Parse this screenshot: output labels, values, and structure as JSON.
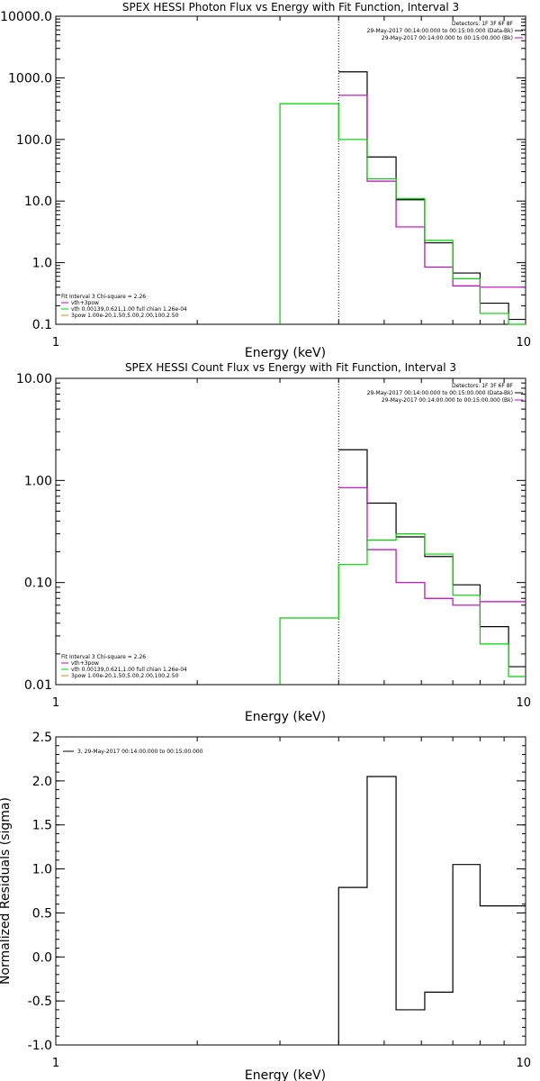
{
  "chart_data": [
    {
      "type": "line",
      "title": "SPEX HESSI Photon Flux vs Energy with Fit Function, Interval 3",
      "xlabel": "Energy (keV)",
      "ylabel": "",
      "x_scale": "log",
      "y_scale": "log",
      "xlim": [
        1,
        10
      ],
      "ylim": [
        0.1,
        10000
      ],
      "x_ticks": [
        1,
        10
      ],
      "x_tick_labels": [
        "1",
        "10"
      ],
      "y_ticks": [
        0.1,
        1,
        10,
        100,
        1000,
        10000
      ],
      "y_tick_labels": [
        "0.1",
        "1.0",
        "10.0",
        "100.0",
        "1000.0",
        "10000.0"
      ],
      "vline_x": 4.0,
      "legend_top_right": [
        {
          "text": "Detectors: 1F 3F 6F 8F",
          "color": ""
        },
        {
          "text": "29-May-2017 00:14:00.000 to 00:15:00.000 (Data-Bk)",
          "color": "#000000"
        },
        {
          "text": "29-May-2017 00:14:00.000 to 00:15:00.000 (Bk)",
          "color": "#c000c0"
        }
      ],
      "legend_bottom_left": [
        {
          "text": "Fit Interval 3   Chi-square = 2.26",
          "color": ""
        },
        {
          "text": "vth+3pow",
          "color": "#c000c0"
        },
        {
          "text": "vth 0.00139,0.621,1.00  full chian 1.26e-04",
          "color": "#00d000"
        },
        {
          "text": "3pow 1.00e-20,1.50,5.00,2.00,100,2.50",
          "color": "#d09000"
        }
      ],
      "series": [
        {
          "color": "#000000",
          "edges": [
            4.0,
            4.6,
            5.3,
            6.1,
            7.0,
            8.0,
            9.2,
            10.0
          ],
          "values": [
            1250,
            52,
            10.5,
            2.1,
            0.68,
            0.22,
            0.12
          ]
        },
        {
          "color": "#c000c0",
          "edges": [
            4.0,
            4.6,
            5.3,
            6.1,
            7.0,
            8.0,
            9.2,
            10.0
          ],
          "values": [
            520,
            21,
            3.8,
            0.85,
            0.42,
            0.4,
            0.4
          ]
        },
        {
          "color": "#00d000",
          "edges": [
            3.0,
            4.0,
            4.6,
            5.3,
            6.1,
            7.0,
            8.0,
            9.2,
            10.0
          ],
          "values": [
            380,
            100,
            23,
            11,
            2.3,
            0.55,
            0.15,
            0.1
          ],
          "drop_to_floor": [
            true,
            false,
            false,
            false,
            false,
            false,
            false,
            false
          ]
        }
      ]
    },
    {
      "type": "line",
      "title": "SPEX HESSI Count Flux vs Energy with Fit Function, Interval 3",
      "xlabel": "Energy (keV)",
      "ylabel": "",
      "x_scale": "log",
      "y_scale": "log",
      "xlim": [
        1,
        10
      ],
      "ylim": [
        0.01,
        10
      ],
      "x_ticks": [
        1,
        10
      ],
      "x_tick_labels": [
        "1",
        "10"
      ],
      "y_ticks": [
        0.01,
        0.1,
        1,
        10
      ],
      "y_tick_labels": [
        "0.01",
        "0.10",
        "1.00",
        "10.00"
      ],
      "vline_x": 4.0,
      "legend_top_right": [
        {
          "text": "Detectors: 1F 3F 6F 8F",
          "color": ""
        },
        {
          "text": "29-May-2017 00:14:00.000 to 00:15:00.000 (Data-Bk)",
          "color": "#000000"
        },
        {
          "text": "29-May-2017 00:14:00.000 to 00:15:00.000 (Bk)",
          "color": "#c000c0"
        }
      ],
      "legend_bottom_left": [
        {
          "text": "Fit Interval 3   Chi-square = 2.26",
          "color": ""
        },
        {
          "text": "vth+3pow",
          "color": "#c000c0"
        },
        {
          "text": "vth 0.00139,0.621,1.00  full chian 1.26e-04",
          "color": "#00d000"
        },
        {
          "text": "3pow 1.00e-20,1.50,5.00,2.00,100,2.50",
          "color": "#d09000"
        }
      ],
      "series": [
        {
          "color": "#000000",
          "edges": [
            4.0,
            4.6,
            5.3,
            6.1,
            7.0,
            8.0,
            9.2,
            10.0
          ],
          "values": [
            2.0,
            0.6,
            0.28,
            0.18,
            0.095,
            0.037,
            0.015
          ]
        },
        {
          "color": "#c000c0",
          "edges": [
            4.0,
            4.6,
            5.3,
            6.1,
            7.0,
            8.0,
            9.2,
            10.0
          ],
          "values": [
            0.85,
            0.21,
            0.1,
            0.07,
            0.06,
            0.065,
            0.065
          ]
        },
        {
          "color": "#00d000",
          "edges": [
            3.0,
            4.0,
            4.6,
            5.3,
            6.1,
            7.0,
            8.0,
            9.2,
            10.0
          ],
          "values": [
            0.045,
            0.15,
            0.26,
            0.3,
            0.19,
            0.075,
            0.025,
            0.012
          ],
          "drop_to_floor": [
            true,
            false,
            false,
            false,
            false,
            false,
            false,
            false
          ]
        }
      ]
    },
    {
      "type": "line",
      "title": "",
      "xlabel": "Energy (keV)",
      "ylabel": "Normalized Residuals (sigma)",
      "x_scale": "log",
      "y_scale": "linear",
      "xlim": [
        1,
        10
      ],
      "ylim": [
        -1.0,
        2.5
      ],
      "x_ticks": [
        1,
        10
      ],
      "x_tick_labels": [
        "1",
        "10"
      ],
      "y_ticks": [
        -1.0,
        -0.5,
        0.0,
        0.5,
        1.0,
        1.5,
        2.0,
        2.5
      ],
      "y_tick_labels": [
        "-1.0",
        "-0.5",
        "0.0",
        "0.5",
        "1.0",
        "1.5",
        "2.0",
        "2.5"
      ],
      "legend_top_left": [
        {
          "text": "3, 29-May-2017 00:14:00.000 to 00:15:00.000",
          "color": "#000000"
        }
      ],
      "series": [
        {
          "color": "#000000",
          "edges": [
            4.0,
            4.6,
            5.3,
            6.1,
            7.0,
            8.0,
            9.2,
            10.0
          ],
          "values": [
            0.79,
            2.05,
            -0.6,
            -0.4,
            1.05,
            0.58,
            0.58
          ],
          "start_from_floor": true
        }
      ]
    }
  ]
}
